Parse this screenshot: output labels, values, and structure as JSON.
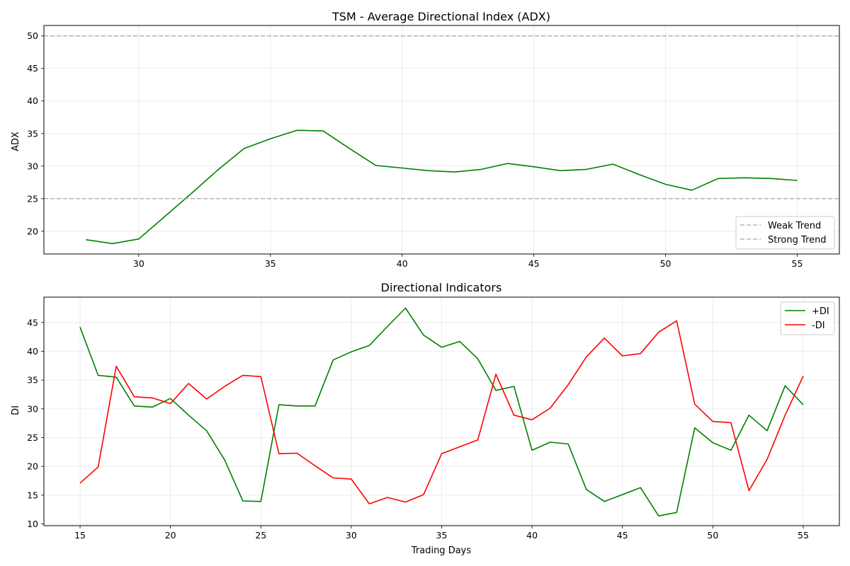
{
  "chart_data": [
    {
      "type": "line",
      "title": "TSM - Average Directional Index (ADX)",
      "xlabel": "",
      "ylabel": "ADX",
      "xlim": [
        26.4,
        56.6
      ],
      "ylim": [
        16.5,
        51.6
      ],
      "xticks": [
        30,
        35,
        40,
        45,
        50,
        55
      ],
      "yticks": [
        20,
        25,
        30,
        35,
        40,
        45,
        50
      ],
      "grid": true,
      "legend_position": "lower-right",
      "x": [
        28,
        29,
        30,
        31,
        32,
        33,
        34,
        35,
        36,
        37,
        38,
        39,
        40,
        41,
        42,
        43,
        44,
        45,
        46,
        47,
        48,
        49,
        50,
        51,
        52,
        53,
        54,
        55
      ],
      "series": [
        {
          "name": "",
          "color": "#008000",
          "style": "solid",
          "values": [
            18.7,
            18.1,
            18.8,
            22.3,
            25.8,
            29.4,
            32.7,
            34.2,
            35.5,
            35.4,
            32.7,
            30.1,
            29.7,
            29.3,
            29.1,
            29.5,
            30.4,
            29.9,
            29.3,
            29.5,
            30.3,
            28.7,
            27.2,
            26.3,
            28.1,
            28.2,
            28.1,
            27.8
          ]
        },
        {
          "name": "Weak Trend",
          "color": "#999999",
          "style": "dashed",
          "constant": 25
        },
        {
          "name": "Strong Trend",
          "color": "#999999",
          "style": "dashed",
          "constant": 50
        }
      ]
    },
    {
      "type": "line",
      "title": "Directional Indicators",
      "xlabel": "Trading Days",
      "ylabel": "DI",
      "xlim": [
        13.0,
        57.0
      ],
      "ylim": [
        9.7,
        49.4
      ],
      "xticks": [
        15,
        20,
        25,
        30,
        35,
        40,
        45,
        50,
        55
      ],
      "yticks": [
        10,
        15,
        20,
        25,
        30,
        35,
        40,
        45
      ],
      "grid": true,
      "legend_position": "top-right",
      "x": [
        15,
        16,
        17,
        18,
        19,
        20,
        21,
        22,
        23,
        24,
        25,
        26,
        27,
        28,
        29,
        30,
        31,
        32,
        33,
        34,
        35,
        36,
        37,
        38,
        39,
        40,
        41,
        42,
        43,
        44,
        45,
        46,
        47,
        48,
        49,
        50,
        51,
        52,
        53,
        54,
        55
      ],
      "series": [
        {
          "name": "+DI",
          "color": "#008000",
          "values": [
            44.2,
            35.8,
            35.5,
            30.5,
            30.3,
            31.8,
            28.9,
            26.2,
            21.1,
            14.0,
            13.9,
            30.7,
            30.5,
            30.5,
            38.5,
            39.9,
            41.0,
            44.3,
            47.5,
            42.8,
            40.7,
            41.7,
            38.7,
            33.2,
            33.9,
            22.8,
            24.2,
            23.9,
            16.0,
            13.9,
            15.1,
            16.3,
            11.4,
            12.0,
            26.7,
            24.1,
            22.8,
            28.9,
            26.2,
            34.0,
            30.7
          ]
        },
        {
          "name": "-DI",
          "color": "#ff0000",
          "values": [
            17.1,
            19.9,
            37.4,
            32.1,
            31.9,
            30.9,
            34.4,
            31.7,
            33.9,
            35.8,
            35.6,
            22.2,
            22.3,
            20.1,
            18.0,
            17.8,
            13.5,
            14.6,
            13.8,
            15.1,
            22.2,
            23.4,
            24.6,
            36.0,
            28.9,
            28.1,
            30.1,
            34.2,
            39.0,
            42.3,
            39.2,
            39.6,
            43.3,
            45.3,
            30.8,
            27.8,
            27.6,
            15.8,
            21.2,
            28.9,
            35.7
          ]
        }
      ]
    }
  ]
}
